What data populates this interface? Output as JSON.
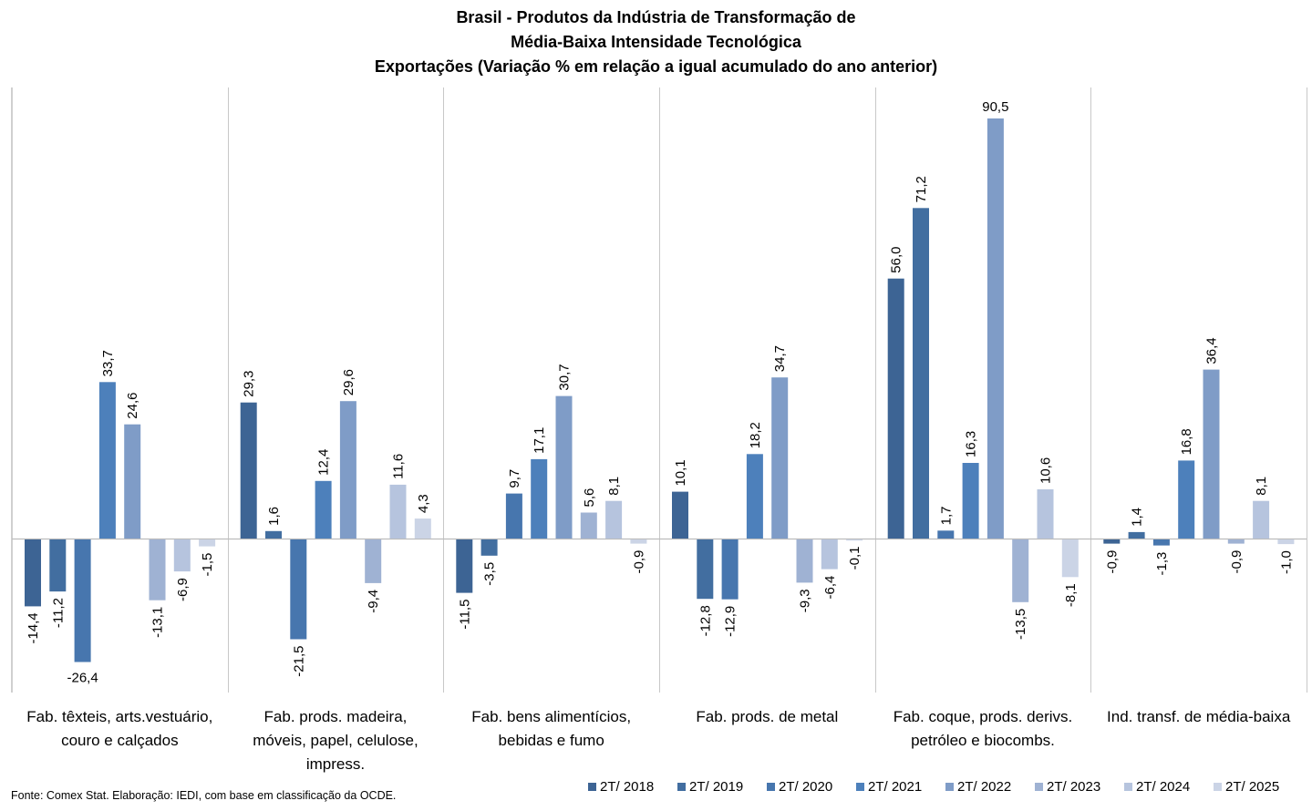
{
  "chart_data": {
    "type": "bar",
    "title": [
      "Brasil - Produtos da Indústria de Transformação de",
      "Média-Baixa Intensidade Tecnológica",
      "Exportações (Variação % em relação a igual acumulado do ano anterior)"
    ],
    "xlabel": "",
    "ylabel": "",
    "ylim": [
      -30,
      95
    ],
    "grid": false,
    "legend_position": "bottom-right",
    "categories": [
      [
        "Fab. têxteis, arts.vestuário,",
        "couro e calçados"
      ],
      [
        "Fab. prods. madeira,",
        "móveis, papel, celulose,",
        "impress."
      ],
      [
        "Fab. bens alimentícios,",
        "bebidas e fumo"
      ],
      [
        "Fab. prods. de metal"
      ],
      [
        "Fab. coque, prods. derivs.",
        "petróleo e biocombs."
      ],
      [
        "Ind. transf. de média-baixa"
      ]
    ],
    "series": [
      {
        "name": "2T/ 2018",
        "color": "#3d6494",
        "values": [
          -14.4,
          29.3,
          -11.5,
          10.1,
          56.0,
          -0.9
        ],
        "labels": [
          "-14,4",
          "29,3",
          "-11,5",
          "10,1",
          "56,0",
          "-0,9"
        ]
      },
      {
        "name": "2T/ 2019",
        "color": "#426ea0",
        "values": [
          -11.2,
          1.6,
          -3.5,
          -12.8,
          71.2,
          1.4
        ],
        "labels": [
          "-11,2",
          "1,6",
          "-3,5",
          "-12,8",
          "71,2",
          "1,4"
        ]
      },
      {
        "name": "2T/ 2020",
        "color": "#4776ae",
        "values": [
          -26.4,
          -21.5,
          9.7,
          -12.9,
          1.7,
          -1.3
        ],
        "labels": [
          "-26,4",
          "-21,5",
          "9,7",
          "-12,9",
          "1,7",
          "-1,3"
        ]
      },
      {
        "name": "2T/ 2021",
        "color": "#4d80bb",
        "values": [
          33.7,
          12.4,
          17.1,
          18.2,
          16.3,
          16.8
        ],
        "labels": [
          "33,7",
          "12,4",
          "17,1",
          "18,2",
          "16,3",
          "16,8"
        ]
      },
      {
        "name": "2T/ 2022",
        "color": "#7f9cc7",
        "values": [
          24.6,
          29.6,
          30.7,
          34.7,
          90.5,
          36.4
        ],
        "labels": [
          "24,6",
          "29,6",
          "30,7",
          "34,7",
          "90,5",
          "36,4"
        ]
      },
      {
        "name": "2T/ 2023",
        "color": "#9fb2d3",
        "values": [
          -13.1,
          -9.4,
          5.6,
          -9.3,
          -13.5,
          -0.9
        ],
        "labels": [
          "-13,1",
          "-9,4",
          "5,6",
          "-9,3",
          "-13,5",
          "-0,9"
        ]
      },
      {
        "name": "2T/ 2024",
        "color": "#b6c4de",
        "values": [
          -6.9,
          11.6,
          8.1,
          -6.4,
          10.6,
          8.1
        ],
        "labels": [
          "-6,9",
          "11,6",
          "8,1",
          "-6,4",
          "10,6",
          "8,1"
        ]
      },
      {
        "name": "2T/ 2025",
        "color": "#cbd4e6",
        "values": [
          -1.5,
          4.3,
          -0.9,
          -0.1,
          -8.1,
          -1.0
        ],
        "labels": [
          "-1,5",
          "4,3",
          "-0,9",
          "-0,1",
          "-8,1",
          "-1,0"
        ]
      }
    ],
    "annotations": [
      "Fonte: Comex Stat. Elaboração: IEDI, com base em classificação da OCDE."
    ]
  },
  "source_note": "Fonte: Comex Stat. Elaboração: IEDI, com base em classificação da OCDE."
}
